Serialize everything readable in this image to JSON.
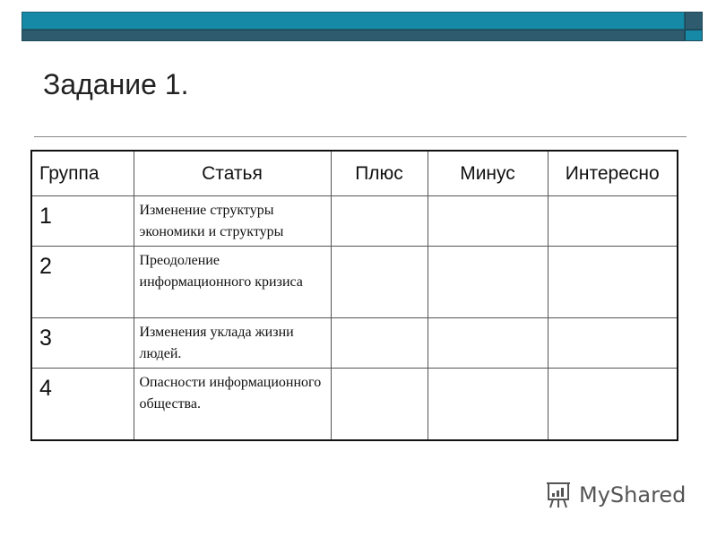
{
  "slide": {
    "title": "Задание 1."
  },
  "table": {
    "headers": [
      "Группа",
      "Статья",
      "Плюс",
      "Минус",
      "Интересно"
    ],
    "rows": [
      {
        "group": "1",
        "article": "Изменение структуры экономики и структуры",
        "plus": "",
        "minus": "",
        "interesting": ""
      },
      {
        "group": "2",
        "article": "Преодоление информационного кризиса",
        "plus": "",
        "minus": "",
        "interesting": ""
      },
      {
        "group": "3",
        "article": "Изменения уклада жизни людей.",
        "plus": "",
        "minus": "",
        "interesting": ""
      },
      {
        "group": "4",
        "article": "Опасности информационного общества.",
        "plus": "",
        "minus": "",
        "interesting": ""
      }
    ]
  },
  "watermark": {
    "text": "MyShared",
    "icon": "presentation-board-icon"
  },
  "colors": {
    "accent": "#1589a5",
    "dark": "#2e5c6e"
  }
}
